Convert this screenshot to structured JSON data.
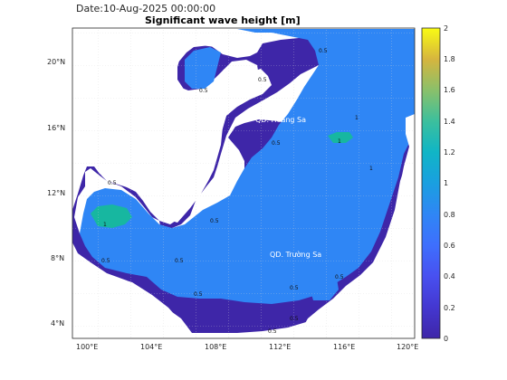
{
  "header": {
    "date": "Date:10-Aug-2025 00:00:00",
    "title": "Significant wave height [m]"
  },
  "map": {
    "lat_ticks": [
      "20°N",
      "16°N",
      "12°N",
      "8°N",
      "4°N"
    ],
    "lon_ticks": [
      "100°E",
      "104°E",
      "108°E",
      "112°E",
      "116°E",
      "120°E"
    ],
    "lat_range": [
      3,
      22
    ],
    "lon_range": [
      99,
      120.5
    ],
    "place_labels": [
      "QD. Hoàng Sa",
      "QD. Trường Sa"
    ],
    "contour_labels": [
      "0.5",
      "0.5",
      "0.5",
      "0.5",
      "0.5",
      "0.5",
      "0.5",
      "0.5",
      "0.5",
      "1",
      "1",
      "1",
      "1",
      "0.5",
      "0.5",
      "0.5",
      "0.5"
    ],
    "colors": {
      "low": "#3e26a8",
      "mid": "#2f86f5",
      "high": "#17b7a0",
      "land": "#ffffff"
    }
  },
  "colorbar": {
    "ticks": [
      "2",
      "1.8",
      "1.6",
      "1.4",
      "1.2",
      "1",
      "0.8",
      "0.6",
      "0.4",
      "0.2",
      "0"
    ],
    "range": [
      0,
      2
    ]
  }
}
